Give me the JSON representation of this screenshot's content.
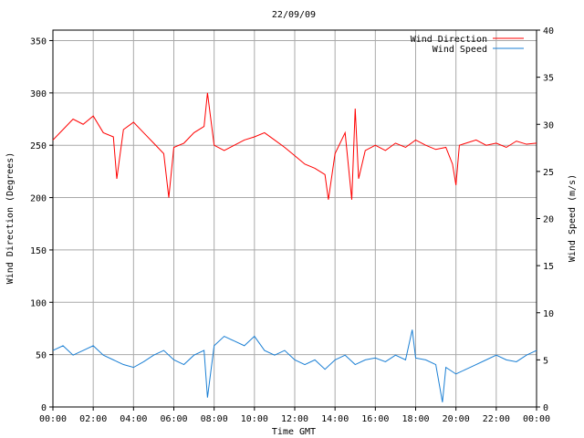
{
  "chart_data": {
    "type": "line",
    "title": "22/09/09",
    "xlabel": "Time GMT",
    "ylabel_left": "Wind Direction (Degrees)",
    "ylabel_right": "Wind Speed (m/s)",
    "x_ticks": [
      "00:00",
      "02:00",
      "04:00",
      "06:00",
      "08:00",
      "10:00",
      "12:00",
      "14:00",
      "16:00",
      "18:00",
      "20:00",
      "22:00",
      "00:00"
    ],
    "xlim_hours": [
      0,
      24
    ],
    "ylim_left": [
      0,
      360
    ],
    "ylim_right": [
      0,
      40
    ],
    "y_ticks_left": [
      0,
      50,
      100,
      150,
      200,
      250,
      300,
      350
    ],
    "y_ticks_right": [
      0,
      5,
      10,
      15,
      20,
      25,
      30,
      35,
      40
    ],
    "grid": true,
    "legend_position": "top-right",
    "series": [
      {
        "name": "Wind Direction",
        "axis": "left",
        "color": "#ff0000",
        "x_hours": [
          0,
          0.5,
          1,
          1.5,
          2,
          2.5,
          3,
          3.17,
          3.5,
          4,
          4.5,
          5,
          5.5,
          5.75,
          6,
          6.5,
          7,
          7.5,
          7.67,
          8,
          8.5,
          9,
          9.5,
          10,
          10.5,
          11,
          11.5,
          12,
          12.5,
          13,
          13.5,
          13.67,
          14,
          14.5,
          14.83,
          15,
          15.17,
          15.5,
          16,
          16.5,
          17,
          17.5,
          18,
          18.5,
          19,
          19.5,
          19.83,
          20,
          20.17,
          20.5,
          21,
          21.5,
          22,
          22.5,
          23,
          23.5,
          24
        ],
        "values": [
          255,
          265,
          275,
          270,
          278,
          262,
          258,
          218,
          265,
          272,
          262,
          252,
          242,
          200,
          248,
          252,
          262,
          268,
          300,
          250,
          245,
          250,
          255,
          258,
          262,
          255,
          248,
          240,
          232,
          228,
          222,
          198,
          242,
          262,
          198,
          285,
          218,
          245,
          250,
          245,
          252,
          248,
          255,
          250,
          246,
          248,
          232,
          212,
          250,
          252,
          255,
          250,
          252,
          248,
          254,
          251,
          252
        ]
      },
      {
        "name": "Wind Speed",
        "axis": "right",
        "color": "#1a7fd4",
        "x_hours": [
          0,
          0.5,
          1,
          1.5,
          2,
          2.5,
          3,
          3.5,
          4,
          4.5,
          5,
          5.5,
          6,
          6.5,
          7,
          7.5,
          7.67,
          8,
          8.5,
          9,
          9.5,
          10,
          10.5,
          11,
          11.5,
          12,
          12.5,
          13,
          13.5,
          14,
          14.5,
          15,
          15.5,
          16,
          16.5,
          17,
          17.5,
          17.83,
          18,
          18.5,
          19,
          19.33,
          19.5,
          20,
          20.5,
          21,
          21.5,
          22,
          22.5,
          23,
          23.5,
          24
        ],
        "values": [
          6,
          6.5,
          5.5,
          6,
          6.5,
          5.5,
          5,
          4.5,
          4.2,
          4.8,
          5.5,
          6,
          5,
          4.5,
          5.5,
          6,
          1,
          6.5,
          7.5,
          7,
          6.5,
          7.5,
          6,
          5.5,
          6,
          5,
          4.5,
          5,
          4,
          5,
          5.5,
          4.5,
          5,
          5.2,
          4.8,
          5.5,
          5,
          8.2,
          5.2,
          5,
          4.5,
          0.5,
          4.2,
          3.5,
          4,
          4.5,
          5,
          5.5,
          5,
          4.8,
          5.5,
          6
        ]
      }
    ]
  }
}
